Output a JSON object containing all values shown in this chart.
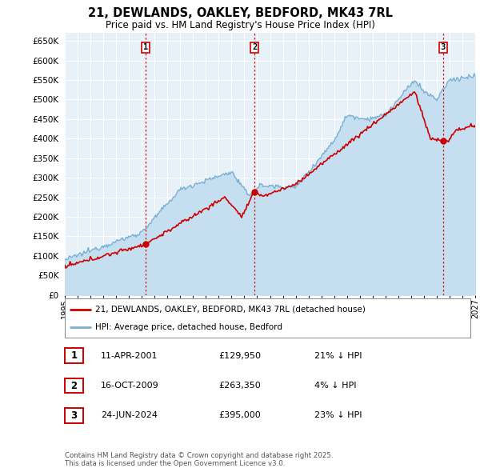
{
  "title": "21, DEWLANDS, OAKLEY, BEDFORD, MK43 7RL",
  "subtitle": "Price paid vs. HM Land Registry's House Price Index (HPI)",
  "background_color": "#ffffff",
  "plot_bg_color": "#e8f0f8",
  "grid_color": "#ffffff",
  "hpi_color": "#7ab0d4",
  "price_color": "#cc0000",
  "hpi_fill_color": "#c5dff0",
  "ylim_min": 0,
  "ylim_max": 670000,
  "yticks": [
    0,
    50000,
    100000,
    150000,
    200000,
    250000,
    300000,
    350000,
    400000,
    450000,
    500000,
    550000,
    600000,
    650000
  ],
  "x_start_year": 1995,
  "x_end_year": 2027,
  "vline_years": [
    2001.28,
    2009.79,
    2024.48
  ],
  "sale_points": [
    {
      "year": 2001.28,
      "price": 129950,
      "label": "1"
    },
    {
      "year": 2009.79,
      "price": 263350,
      "label": "2"
    },
    {
      "year": 2024.48,
      "price": 395000,
      "label": "3"
    }
  ],
  "legend_entries": [
    {
      "label": "21, DEWLANDS, OAKLEY, BEDFORD, MK43 7RL (detached house)",
      "color": "#cc0000"
    },
    {
      "label": "HPI: Average price, detached house, Bedford",
      "color": "#7ab0d4"
    }
  ],
  "table_rows": [
    {
      "num": "1",
      "date": "11-APR-2001",
      "price": "£129,950",
      "hpi": "21% ↓ HPI"
    },
    {
      "num": "2",
      "date": "16-OCT-2009",
      "price": "£263,350",
      "hpi": "4% ↓ HPI"
    },
    {
      "num": "3",
      "date": "24-JUN-2024",
      "price": "£395,000",
      "hpi": "23% ↓ HPI"
    }
  ],
  "footnote": "Contains HM Land Registry data © Crown copyright and database right 2025.\nThis data is licensed under the Open Government Licence v3.0."
}
